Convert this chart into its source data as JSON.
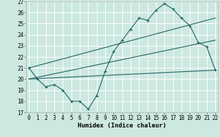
{
  "xlabel": "Humidex (Indice chaleur)",
  "xlim": [
    -0.3,
    22.3
  ],
  "ylim": [
    17,
    27
  ],
  "yticks": [
    17,
    18,
    19,
    20,
    21,
    22,
    23,
    24,
    25,
    26,
    27
  ],
  "xticks": [
    0,
    1,
    2,
    3,
    4,
    5,
    6,
    7,
    8,
    9,
    10,
    11,
    12,
    13,
    14,
    15,
    16,
    17,
    18,
    19,
    20,
    21,
    22
  ],
  "bg_color": "#cce8e0",
  "grid_color": "#b0d8d0",
  "line_color": "#1a6060",
  "main_x": [
    0,
    1,
    2,
    3,
    4,
    5,
    6,
    7,
    8,
    9,
    10,
    11,
    12,
    13,
    14,
    15,
    16,
    17,
    18,
    19,
    20,
    21,
    22
  ],
  "main_y": [
    21.0,
    20.0,
    19.3,
    19.5,
    19.0,
    18.0,
    18.0,
    17.3,
    18.5,
    20.7,
    22.5,
    23.5,
    24.5,
    25.5,
    25.3,
    26.2,
    26.8,
    26.3,
    25.5,
    24.8,
    23.3,
    22.9,
    20.8
  ],
  "trend1_x": [
    0,
    22
  ],
  "trend1_y": [
    21.0,
    25.5
  ],
  "trend2_x": [
    0,
    22
  ],
  "trend2_y": [
    20.0,
    23.5
  ],
  "trend3_x": [
    0,
    22
  ],
  "trend3_y": [
    20.0,
    20.8
  ],
  "tick_fontsize": 5.5,
  "xlabel_fontsize": 6.5
}
